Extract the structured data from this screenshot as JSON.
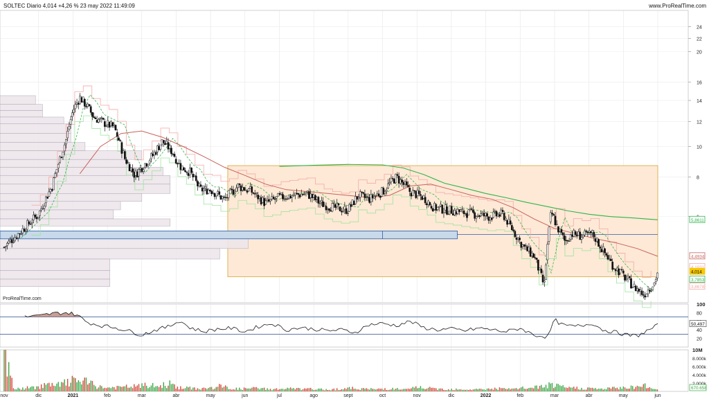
{
  "header": {
    "title": "SOLTEC Diario 4,014 +4,26 % 23 may 2022 11:49:09",
    "source": "www.ProRealTime.com"
  },
  "watermark": "ProRealTime.com",
  "colors": {
    "up": "#0a0a0a",
    "down": "#0a0a0a",
    "sma_long": "#2fb34a",
    "sma_mid": "#c9625c",
    "stop_pink": "#f4a6a6",
    "stop_green": "#9be39b",
    "range_fill": "#fde9d6",
    "range_border": "#d9a430",
    "poc_fill": "#c7d9ea",
    "poc_border": "#2a5ea8",
    "profile_fill": "#eee6ea",
    "profile_border": "#a7a0b4",
    "rsi_line": "#1a1a1a",
    "rsi_over": "#b8867a",
    "price_box": "#f7c800"
  },
  "chart_data": [
    {
      "type": "line",
      "panel": "price",
      "title": "SOLTEC Diario",
      "scale": "log",
      "ylim": [
        3.2,
        27
      ],
      "y_ticks": [
        "24",
        "22",
        "20",
        "16",
        "14",
        "12",
        "10",
        "8",
        "6"
      ],
      "x_ticks": [
        "nov",
        "dic",
        "2021",
        "feb",
        "mar",
        "abr",
        "may",
        "jun",
        "jul",
        "ago",
        "sept",
        "oct",
        "nov",
        "dic",
        "2022",
        "feb",
        "mar",
        "abr",
        "may",
        "jun"
      ],
      "x_months_index": [
        0,
        1,
        2,
        3,
        4,
        5,
        6,
        7,
        8,
        9,
        10,
        11,
        12,
        13,
        14,
        15,
        16,
        17,
        18,
        19
      ],
      "series": [
        {
          "key": "close",
          "x": [
            0,
            0.5,
            1,
            1.4,
            1.8,
            2.0,
            2.2,
            2.4,
            2.6,
            2.9,
            3.2,
            3.5,
            3.8,
            4.0,
            4.3,
            4.6,
            4.9,
            5.1,
            5.4,
            5.7,
            6.0,
            6.4,
            6.8,
            7.2,
            7.6,
            8.0,
            8.4,
            8.8,
            9.2,
            9.6,
            10.0,
            10.3,
            10.6,
            11.0,
            11.4,
            11.8,
            12.2,
            12.5,
            12.9,
            13.3,
            13.7,
            14.1,
            14.5,
            14.8,
            15.1,
            15.4,
            15.7,
            15.9,
            16.1,
            16.3,
            16.5,
            16.8,
            17.1,
            17.4,
            17.7,
            18.0,
            18.3,
            18.6,
            18.9,
            19.0
          ],
          "values": [
            4.8,
            5.4,
            6.1,
            7.5,
            10.5,
            13.0,
            14.3,
            13.5,
            12.4,
            11.9,
            11.5,
            9.2,
            8.1,
            8.6,
            9.3,
            10.4,
            9.6,
            8.7,
            8.3,
            7.3,
            7.3,
            6.8,
            7.5,
            7.2,
            6.6,
            6.9,
            7.0,
            7.1,
            6.6,
            6.4,
            6.3,
            7.0,
            6.8,
            7.2,
            8.0,
            7.2,
            6.9,
            6.4,
            6.3,
            6.2,
            6.1,
            6.0,
            6.1,
            5.4,
            4.8,
            4.5,
            3.6,
            6.2,
            5.5,
            5.0,
            5.3,
            5.2,
            5.3,
            4.7,
            4.2,
            3.9,
            3.6,
            3.4,
            3.7,
            4.014
          ]
        },
        {
          "key": "sma_long",
          "x": [
            8.0,
            9.0,
            10.0,
            11.0,
            11.6,
            12.2,
            12.8,
            13.4,
            14.0,
            14.6,
            15.2,
            15.8,
            16.4,
            17.0,
            17.6,
            18.2,
            18.8,
            19.0
          ],
          "values": [
            8.65,
            8.72,
            8.78,
            8.75,
            8.55,
            8.15,
            7.65,
            7.38,
            7.1,
            6.88,
            6.65,
            6.45,
            6.25,
            6.1,
            6.0,
            5.95,
            5.88,
            5.86
          ]
        },
        {
          "key": "sma_mid",
          "x": [
            2.2,
            2.8,
            3.4,
            4.0,
            4.6,
            5.2,
            5.8,
            6.4,
            7.0,
            7.6,
            8.2,
            8.8,
            9.4,
            10.0,
            10.6,
            11.2,
            11.8,
            12.4,
            13.0,
            13.6,
            14.2,
            14.8,
            15.4,
            16.0,
            16.6,
            17.2,
            17.8,
            18.4,
            19.0
          ],
          "values": [
            8.2,
            10.0,
            11.0,
            11.2,
            10.7,
            10.0,
            9.3,
            8.6,
            8.1,
            7.6,
            7.3,
            7.2,
            7.1,
            7.0,
            6.9,
            7.0,
            7.5,
            7.6,
            7.3,
            7.0,
            6.8,
            6.4,
            5.9,
            5.5,
            5.3,
            5.1,
            4.95,
            4.75,
            4.49
          ]
        }
      ],
      "annotations": {
        "range_box": {
          "x_start": 6.5,
          "x_end": 19.0,
          "y_low": 3.8678,
          "y_high": 8.7
        },
        "poc_band": {
          "y_low": 5.1,
          "y_high": 5.4,
          "y_line": 5.26,
          "split_x": 11.0
        },
        "volume_profile": [
          {
            "top": 14.5,
            "bottom": 13.6,
            "len": 0.05
          },
          {
            "top": 13.6,
            "bottom": 13.0,
            "len": 0.06
          },
          {
            "top": 13.0,
            "bottom": 12.4,
            "len": 0.06
          },
          {
            "top": 12.4,
            "bottom": 11.8,
            "len": 0.09
          },
          {
            "top": 11.8,
            "bottom": 11.0,
            "len": 0.1
          },
          {
            "top": 11.0,
            "bottom": 10.3,
            "len": 0.1
          },
          {
            "top": 10.3,
            "bottom": 9.7,
            "len": 0.12
          },
          {
            "top": 9.7,
            "bottom": 9.1,
            "len": 0.2
          },
          {
            "top": 9.1,
            "bottom": 8.6,
            "len": 0.18
          },
          {
            "top": 8.6,
            "bottom": 8.1,
            "len": 0.23
          },
          {
            "top": 8.1,
            "bottom": 7.6,
            "len": 0.24
          },
          {
            "top": 7.6,
            "bottom": 7.1,
            "len": 0.24
          },
          {
            "top": 7.1,
            "bottom": 6.7,
            "len": 0.2
          },
          {
            "top": 6.7,
            "bottom": 6.3,
            "len": 0.17
          },
          {
            "top": 6.3,
            "bottom": 5.9,
            "len": 0.16
          },
          {
            "top": 5.9,
            "bottom": 5.6,
            "len": 0.24
          },
          {
            "top": 5.4,
            "bottom": 5.1,
            "len": 0.645
          },
          {
            "top": 5.1,
            "bottom": 4.75,
            "len": 0.35
          },
          {
            "top": 4.75,
            "bottom": 4.4,
            "len": 0.31
          },
          {
            "top": 4.4,
            "bottom": 4.05,
            "len": 0.155
          },
          {
            "top": 4.05,
            "bottom": 3.8,
            "len": 0.155
          },
          {
            "top": 3.8,
            "bottom": 3.6,
            "len": 0.155
          }
        ]
      },
      "price_labels": [
        {
          "value": "5,8611",
          "y": 5.8611,
          "color": "#2fb34a"
        },
        {
          "value": "4,4934",
          "y": 4.4934,
          "color": "#c9625c"
        },
        {
          "value": "4,1031",
          "y": 4.1531,
          "color": "#f4a6a6"
        },
        {
          "value": "4,014",
          "y": 4.014,
          "color": "#f7c800"
        },
        {
          "value": "3,7853",
          "y": 3.79,
          "color": "#2fb34a"
        },
        {
          "value": "3,8678",
          "y": 3.6,
          "color": "#f4a6a6"
        }
      ]
    },
    {
      "type": "line",
      "panel": "rsi",
      "ylim": [
        0,
        100
      ],
      "y_ticks": [
        "100",
        "80",
        "60",
        "40",
        "20"
      ],
      "levels": [
        70,
        30
      ],
      "last_value": "50,497",
      "x": [
        0,
        0.5,
        1.0,
        1.4,
        1.8,
        2.1,
        2.4,
        2.8,
        3.2,
        3.6,
        4.0,
        4.4,
        4.8,
        5.1,
        5.4,
        5.8,
        6.2,
        6.6,
        7.0,
        7.4,
        7.8,
        8.2,
        8.6,
        9.0,
        9.4,
        9.8,
        10.2,
        10.6,
        11.0,
        11.4,
        11.8,
        12.2,
        12.6,
        13.0,
        13.4,
        13.8,
        14.2,
        14.6,
        15.0,
        15.4,
        15.8,
        16.0,
        16.2,
        16.5,
        16.8,
        17.1,
        17.4,
        17.8,
        18.1,
        18.4,
        18.7,
        19.0
      ],
      "values": [
        68,
        70,
        72,
        78,
        80,
        76,
        58,
        50,
        46,
        38,
        28,
        40,
        48,
        62,
        45,
        36,
        42,
        44,
        36,
        48,
        55,
        40,
        45,
        42,
        38,
        40,
        34,
        52,
        55,
        50,
        60,
        45,
        40,
        42,
        38,
        44,
        40,
        36,
        44,
        28,
        24,
        64,
        52,
        48,
        50,
        56,
        40,
        34,
        28,
        26,
        38,
        50.497
      ]
    },
    {
      "type": "bar",
      "panel": "volume",
      "ylim": [
        0,
        10000000
      ],
      "y_ticks": [
        "10M",
        "8.000k",
        "6.000k",
        "4.000k",
        "2.000k"
      ],
      "last_value": "670.658",
      "x": [
        0,
        0.3,
        0.6,
        0.9,
        1.2,
        1.5,
        1.8,
        2.1,
        2.4,
        2.7,
        3.0,
        3.3,
        3.6,
        3.9,
        4.2,
        4.5,
        4.8,
        5.1,
        5.4,
        5.7,
        6.0,
        6.3,
        6.6,
        6.9,
        7.2,
        7.5,
        7.8,
        8.1,
        8.4,
        8.7,
        9.0,
        9.3,
        9.6,
        9.9,
        10.2,
        10.5,
        10.8,
        11.1,
        11.4,
        11.7,
        12.0,
        12.3,
        12.6,
        12.9,
        13.2,
        13.5,
        13.8,
        14.1,
        14.4,
        14.7,
        15.0,
        15.3,
        15.6,
        15.9,
        16.2,
        16.5,
        16.8,
        17.1,
        17.4,
        17.7,
        18.0,
        18.3,
        18.6,
        18.9
      ],
      "values": [
        10000000,
        600000,
        900000,
        1200000,
        1800000,
        1600000,
        2400000,
        3200000,
        2600000,
        1400000,
        1000000,
        1100000,
        1300000,
        1500000,
        1700000,
        1400000,
        2200000,
        1000000,
        900000,
        800000,
        900000,
        1500000,
        800000,
        700000,
        900000,
        800000,
        600000,
        700000,
        800000,
        600000,
        700000,
        500000,
        600000,
        800000,
        900000,
        700000,
        600000,
        800000,
        700000,
        500000,
        1200000,
        900000,
        700000,
        600000,
        700000,
        500000,
        600000,
        700000,
        800000,
        600000,
        900000,
        1000000,
        1300000,
        1800000,
        1200000,
        1000000,
        900000,
        800000,
        700000,
        900000,
        1100000,
        1300000,
        1600000,
        670658
      ]
    }
  ]
}
